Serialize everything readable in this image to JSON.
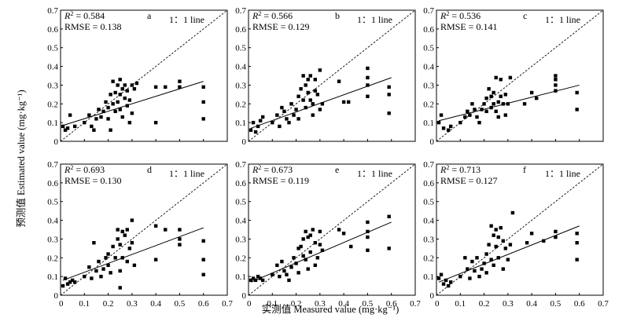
{
  "figure": {
    "xlabel": "实测值 Measured value (mg·kg⁻¹)",
    "ylabel": "预测值 Estimated value (mg·kg⁻¹)",
    "one_to_one_label": "1：1 line"
  },
  "chart_data": [
    {
      "type": "scatter",
      "panel": "a",
      "r2_label": "R² = 0.584",
      "rmse_label": "RMSE = 0.138",
      "xlim": [
        0,
        0.7
      ],
      "ylim": [
        0,
        0.7
      ],
      "grid": false,
      "xticks": [
        "0",
        "0.1",
        "0.2",
        "0.3",
        "0.4",
        "0.5",
        "0.6",
        "0.7"
      ],
      "yticks": [
        "0",
        "0.1",
        "0.2",
        "0.3",
        "0.4",
        "0.5",
        "0.6",
        "0.7"
      ],
      "fit_line": [
        [
          0.01,
          0.085
        ],
        [
          0.6,
          0.32
        ]
      ],
      "points": [
        [
          0.01,
          0.08
        ],
        [
          0.02,
          0.06
        ],
        [
          0.03,
          0.07
        ],
        [
          0.04,
          0.14
        ],
        [
          0.06,
          0.08
        ],
        [
          0.1,
          0.1
        ],
        [
          0.12,
          0.14
        ],
        [
          0.13,
          0.08
        ],
        [
          0.14,
          0.06
        ],
        [
          0.15,
          0.12
        ],
        [
          0.16,
          0.17
        ],
        [
          0.17,
          0.13
        ],
        [
          0.18,
          0.16
        ],
        [
          0.19,
          0.21
        ],
        [
          0.2,
          0.18
        ],
        [
          0.2,
          0.12
        ],
        [
          0.21,
          0.06
        ],
        [
          0.21,
          0.25
        ],
        [
          0.22,
          0.32
        ],
        [
          0.22,
          0.2
        ],
        [
          0.23,
          0.16
        ],
        [
          0.23,
          0.26
        ],
        [
          0.24,
          0.3
        ],
        [
          0.24,
          0.21
        ],
        [
          0.25,
          0.33
        ],
        [
          0.25,
          0.25
        ],
        [
          0.25,
          0.17
        ],
        [
          0.26,
          0.28
        ],
        [
          0.26,
          0.13
        ],
        [
          0.27,
          0.3
        ],
        [
          0.27,
          0.23
        ],
        [
          0.28,
          0.27
        ],
        [
          0.28,
          0.19
        ],
        [
          0.29,
          0.22
        ],
        [
          0.29,
          0.1
        ],
        [
          0.3,
          0.3
        ],
        [
          0.3,
          0.15
        ],
        [
          0.31,
          0.28
        ],
        [
          0.32,
          0.31
        ],
        [
          0.4,
          0.29
        ],
        [
          0.4,
          0.1
        ],
        [
          0.44,
          0.29
        ],
        [
          0.5,
          0.32
        ],
        [
          0.5,
          0.29
        ],
        [
          0.6,
          0.29
        ],
        [
          0.6,
          0.21
        ],
        [
          0.6,
          0.12
        ]
      ]
    },
    {
      "type": "scatter",
      "panel": "b",
      "r2_label": "R² = 0.566",
      "rmse_label": "RMSE = 0.129",
      "xlim": [
        0,
        0.7
      ],
      "ylim": [
        0,
        0.7
      ],
      "grid": false,
      "xticks": [
        "0",
        "0.1",
        "0.2",
        "0.3",
        "0.4",
        "0.5",
        "0.6",
        "0.7"
      ],
      "yticks": [
        "0",
        "0.1",
        "0.2",
        "0.3",
        "0.4",
        "0.5",
        "0.6",
        "0.7"
      ],
      "fit_line": [
        [
          0.01,
          0.07
        ],
        [
          0.6,
          0.34
        ]
      ],
      "points": [
        [
          0.01,
          0.06
        ],
        [
          0.02,
          0.1
        ],
        [
          0.03,
          0.05
        ],
        [
          0.04,
          0.08
        ],
        [
          0.05,
          0.11
        ],
        [
          0.06,
          0.13
        ],
        [
          0.1,
          0.1
        ],
        [
          0.12,
          0.14
        ],
        [
          0.13,
          0.08
        ],
        [
          0.14,
          0.18
        ],
        [
          0.15,
          0.16
        ],
        [
          0.16,
          0.12
        ],
        [
          0.17,
          0.1
        ],
        [
          0.18,
          0.2
        ],
        [
          0.19,
          0.14
        ],
        [
          0.2,
          0.17
        ],
        [
          0.21,
          0.12
        ],
        [
          0.21,
          0.24
        ],
        [
          0.22,
          0.28
        ],
        [
          0.23,
          0.22
        ],
        [
          0.23,
          0.35
        ],
        [
          0.24,
          0.3
        ],
        [
          0.24,
          0.18
        ],
        [
          0.25,
          0.33
        ],
        [
          0.25,
          0.26
        ],
        [
          0.26,
          0.35
        ],
        [
          0.26,
          0.22
        ],
        [
          0.27,
          0.2
        ],
        [
          0.27,
          0.14
        ],
        [
          0.28,
          0.27
        ],
        [
          0.28,
          0.33
        ],
        [
          0.29,
          0.25
        ],
        [
          0.3,
          0.38
        ],
        [
          0.3,
          0.17
        ],
        [
          0.31,
          0.2
        ],
        [
          0.38,
          0.32
        ],
        [
          0.4,
          0.21
        ],
        [
          0.42,
          0.21
        ],
        [
          0.5,
          0.39
        ],
        [
          0.5,
          0.34
        ],
        [
          0.5,
          0.3
        ],
        [
          0.5,
          0.24
        ],
        [
          0.59,
          0.29
        ],
        [
          0.59,
          0.25
        ],
        [
          0.59,
          0.15
        ]
      ]
    },
    {
      "type": "scatter",
      "panel": "c",
      "r2_label": "R² = 0.536",
      "rmse_label": "RMSE = 0.141",
      "xlim": [
        0,
        0.7
      ],
      "ylim": [
        0,
        0.7
      ],
      "grid": false,
      "xticks": [
        "0",
        "0.1",
        "0.2",
        "0.3",
        "0.4",
        "0.5",
        "0.6",
        "0.7"
      ],
      "yticks": [
        "0",
        "0.1",
        "0.2",
        "0.3",
        "0.4",
        "0.5",
        "0.6",
        "0.7"
      ],
      "fit_line": [
        [
          0.01,
          0.11
        ],
        [
          0.6,
          0.3
        ]
      ],
      "points": [
        [
          0.01,
          0.1
        ],
        [
          0.02,
          0.14
        ],
        [
          0.03,
          0.07
        ],
        [
          0.05,
          0.06
        ],
        [
          0.06,
          0.08
        ],
        [
          0.1,
          0.1
        ],
        [
          0.12,
          0.13
        ],
        [
          0.13,
          0.16
        ],
        [
          0.14,
          0.14
        ],
        [
          0.15,
          0.2
        ],
        [
          0.16,
          0.17
        ],
        [
          0.17,
          0.13
        ],
        [
          0.18,
          0.1
        ],
        [
          0.19,
          0.17
        ],
        [
          0.2,
          0.2
        ],
        [
          0.21,
          0.16
        ],
        [
          0.21,
          0.23
        ],
        [
          0.22,
          0.28
        ],
        [
          0.23,
          0.18
        ],
        [
          0.23,
          0.24
        ],
        [
          0.24,
          0.26
        ],
        [
          0.24,
          0.2
        ],
        [
          0.25,
          0.34
        ],
        [
          0.25,
          0.16
        ],
        [
          0.26,
          0.21
        ],
        [
          0.26,
          0.13
        ],
        [
          0.27,
          0.33
        ],
        [
          0.27,
          0.24
        ],
        [
          0.28,
          0.2
        ],
        [
          0.29,
          0.25
        ],
        [
          0.29,
          0.14
        ],
        [
          0.3,
          0.2
        ],
        [
          0.31,
          0.34
        ],
        [
          0.37,
          0.2
        ],
        [
          0.4,
          0.26
        ],
        [
          0.42,
          0.23
        ],
        [
          0.5,
          0.35
        ],
        [
          0.5,
          0.3
        ],
        [
          0.5,
          0.27
        ],
        [
          0.5,
          0.33
        ],
        [
          0.59,
          0.26
        ],
        [
          0.59,
          0.17
        ]
      ]
    },
    {
      "type": "scatter",
      "panel": "d",
      "r2_label": "R² = 0.693",
      "rmse_label": "RMSE = 0.130",
      "xlim": [
        0,
        0.7
      ],
      "ylim": [
        0,
        0.7
      ],
      "grid": false,
      "xticks": [
        "0",
        "0.1",
        "0.2",
        "0.3",
        "0.4",
        "0.5",
        "0.6",
        "0.7"
      ],
      "yticks": [
        "0",
        "0.1",
        "0.2",
        "0.3",
        "0.4",
        "0.5",
        "0.6",
        "0.7"
      ],
      "fit_line": [
        [
          0.01,
          0.08
        ],
        [
          0.6,
          0.36
        ]
      ],
      "points": [
        [
          0.01,
          0.05
        ],
        [
          0.02,
          0.09
        ],
        [
          0.03,
          0.06
        ],
        [
          0.04,
          0.07
        ],
        [
          0.05,
          0.08
        ],
        [
          0.06,
          0.07
        ],
        [
          0.1,
          0.1
        ],
        [
          0.12,
          0.15
        ],
        [
          0.13,
          0.09
        ],
        [
          0.14,
          0.28
        ],
        [
          0.15,
          0.13
        ],
        [
          0.16,
          0.18
        ],
        [
          0.17,
          0.1
        ],
        [
          0.18,
          0.14
        ],
        [
          0.19,
          0.2
        ],
        [
          0.2,
          0.16
        ],
        [
          0.2,
          0.22
        ],
        [
          0.21,
          0.12
        ],
        [
          0.22,
          0.26
        ],
        [
          0.23,
          0.2
        ],
        [
          0.24,
          0.35
        ],
        [
          0.24,
          0.3
        ],
        [
          0.25,
          0.27
        ],
        [
          0.25,
          0.13
        ],
        [
          0.25,
          0.04
        ],
        [
          0.26,
          0.34
        ],
        [
          0.26,
          0.2
        ],
        [
          0.27,
          0.32
        ],
        [
          0.28,
          0.35
        ],
        [
          0.28,
          0.18
        ],
        [
          0.29,
          0.25
        ],
        [
          0.3,
          0.4
        ],
        [
          0.3,
          0.28
        ],
        [
          0.31,
          0.16
        ],
        [
          0.4,
          0.37
        ],
        [
          0.4,
          0.19
        ],
        [
          0.44,
          0.35
        ],
        [
          0.5,
          0.35
        ],
        [
          0.5,
          0.3
        ],
        [
          0.5,
          0.27
        ],
        [
          0.6,
          0.29
        ],
        [
          0.6,
          0.19
        ],
        [
          0.6,
          0.11
        ]
      ]
    },
    {
      "type": "scatter",
      "panel": "e",
      "r2_label": "R² = 0.673",
      "rmse_label": "RMSE = 0.119",
      "xlim": [
        0,
        0.7
      ],
      "ylim": [
        0,
        0.7
      ],
      "grid": false,
      "xticks": [
        "0",
        "0.1",
        "0.2",
        "0.3",
        "0.4",
        "0.5",
        "0.6",
        "0.7"
      ],
      "yticks": [
        "0",
        "0.1",
        "0.2",
        "0.3",
        "0.4",
        "0.5",
        "0.6",
        "0.7"
      ],
      "fit_line": [
        [
          0.01,
          0.07
        ],
        [
          0.6,
          0.39
        ]
      ],
      "points": [
        [
          0.01,
          0.08
        ],
        [
          0.02,
          0.09
        ],
        [
          0.03,
          0.08
        ],
        [
          0.04,
          0.1
        ],
        [
          0.05,
          0.09
        ],
        [
          0.06,
          0.08
        ],
        [
          0.1,
          0.11
        ],
        [
          0.12,
          0.16
        ],
        [
          0.13,
          0.1
        ],
        [
          0.14,
          0.18
        ],
        [
          0.15,
          0.13
        ],
        [
          0.16,
          0.11
        ],
        [
          0.17,
          0.08
        ],
        [
          0.18,
          0.15
        ],
        [
          0.19,
          0.2
        ],
        [
          0.2,
          0.17
        ],
        [
          0.21,
          0.25
        ],
        [
          0.21,
          0.12
        ],
        [
          0.22,
          0.26
        ],
        [
          0.23,
          0.21
        ],
        [
          0.23,
          0.3
        ],
        [
          0.24,
          0.34
        ],
        [
          0.24,
          0.19
        ],
        [
          0.25,
          0.31
        ],
        [
          0.25,
          0.14
        ],
        [
          0.26,
          0.32
        ],
        [
          0.26,
          0.23
        ],
        [
          0.27,
          0.35
        ],
        [
          0.28,
          0.28
        ],
        [
          0.28,
          0.16
        ],
        [
          0.29,
          0.2
        ],
        [
          0.3,
          0.34
        ],
        [
          0.3,
          0.27
        ],
        [
          0.31,
          0.24
        ],
        [
          0.38,
          0.35
        ],
        [
          0.4,
          0.33
        ],
        [
          0.43,
          0.26
        ],
        [
          0.5,
          0.39
        ],
        [
          0.5,
          0.34
        ],
        [
          0.5,
          0.31
        ],
        [
          0.5,
          0.24
        ],
        [
          0.59,
          0.42
        ],
        [
          0.59,
          0.25
        ]
      ]
    },
    {
      "type": "scatter",
      "panel": "f",
      "r2_label": "R² = 0.713",
      "rmse_label": "RMSE = 0.127",
      "xlim": [
        0,
        0.7
      ],
      "ylim": [
        0,
        0.7
      ],
      "grid": false,
      "xticks": [
        "0",
        "0.1",
        "0.2",
        "0.3",
        "0.4",
        "0.5",
        "0.6",
        "0.7"
      ],
      "yticks": [
        "0",
        "0.1",
        "0.2",
        "0.3",
        "0.4",
        "0.5",
        "0.6",
        "0.7"
      ],
      "fit_line": [
        [
          0.01,
          0.07
        ],
        [
          0.6,
          0.37
        ]
      ],
      "points": [
        [
          0.01,
          0.09
        ],
        [
          0.02,
          0.11
        ],
        [
          0.03,
          0.06
        ],
        [
          0.04,
          0.08
        ],
        [
          0.05,
          0.05
        ],
        [
          0.06,
          0.07
        ],
        [
          0.1,
          0.1
        ],
        [
          0.12,
          0.2
        ],
        [
          0.13,
          0.14
        ],
        [
          0.14,
          0.09
        ],
        [
          0.15,
          0.18
        ],
        [
          0.16,
          0.13
        ],
        [
          0.17,
          0.2
        ],
        [
          0.18,
          0.1
        ],
        [
          0.19,
          0.14
        ],
        [
          0.2,
          0.17
        ],
        [
          0.21,
          0.12
        ],
        [
          0.21,
          0.22
        ],
        [
          0.22,
          0.27
        ],
        [
          0.23,
          0.19
        ],
        [
          0.23,
          0.37
        ],
        [
          0.24,
          0.32
        ],
        [
          0.24,
          0.16
        ],
        [
          0.25,
          0.35
        ],
        [
          0.25,
          0.26
        ],
        [
          0.26,
          0.31
        ],
        [
          0.26,
          0.2
        ],
        [
          0.27,
          0.36
        ],
        [
          0.28,
          0.29
        ],
        [
          0.28,
          0.14
        ],
        [
          0.29,
          0.25
        ],
        [
          0.3,
          0.19
        ],
        [
          0.31,
          0.27
        ],
        [
          0.32,
          0.44
        ],
        [
          0.38,
          0.28
        ],
        [
          0.4,
          0.33
        ],
        [
          0.45,
          0.29
        ],
        [
          0.5,
          0.34
        ],
        [
          0.5,
          0.31
        ],
        [
          0.59,
          0.33
        ],
        [
          0.59,
          0.28
        ],
        [
          0.59,
          0.19
        ]
      ]
    }
  ]
}
